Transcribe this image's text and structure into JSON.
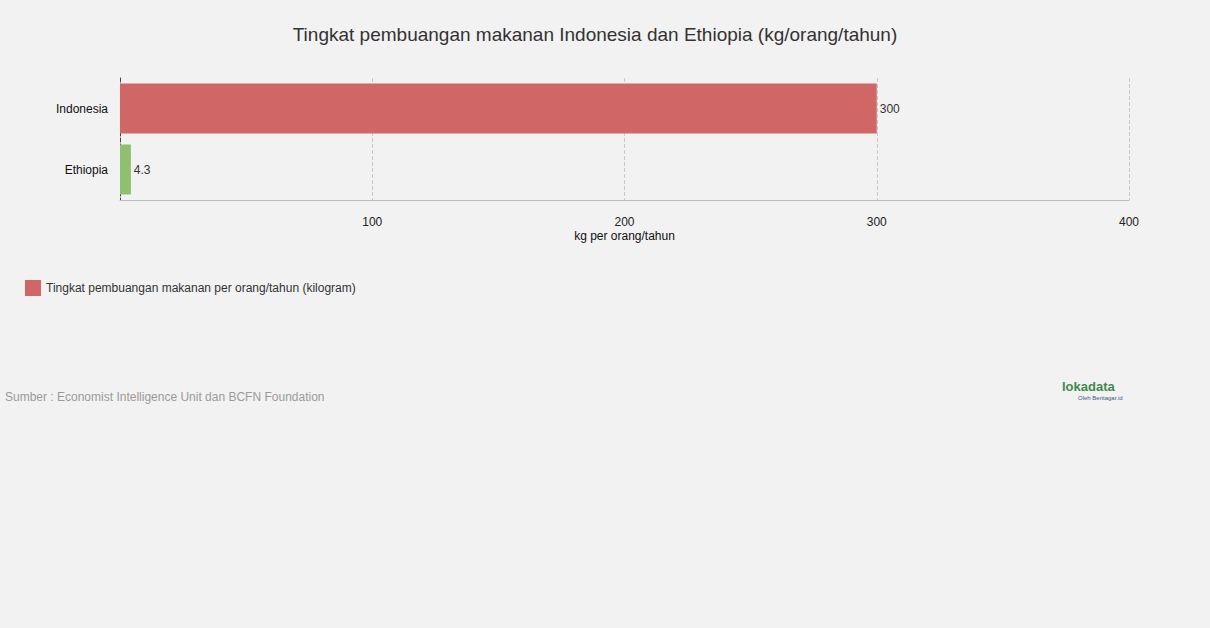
{
  "chart_data": {
    "type": "bar",
    "orientation": "horizontal",
    "title": "Tingkat pembuangan makanan Indonesia dan Ethiopia (kg/orang/tahun)",
    "x_label": "kg per orang/tahun",
    "categories": [
      "Indonesia",
      "Ethiopia"
    ],
    "series": [
      {
        "name": "Tingkat pembuangan makanan per orang/tahun (kilogram)",
        "color": "#d16666",
        "colors": [
          "#d16666",
          "#8fbf6f"
        ],
        "values": [
          300,
          4.3
        ]
      }
    ],
    "xlim": [
      0,
      400
    ],
    "xticks": [
      100,
      200,
      300,
      400
    ],
    "grid": true,
    "data_labels": true,
    "legend": "bottom-left",
    "source": "Sumber : Economist Intelligence Unit dan BCFN Foundation",
    "logo": "lokadata",
    "logo_sub": "Oleh Beritagar.id"
  }
}
